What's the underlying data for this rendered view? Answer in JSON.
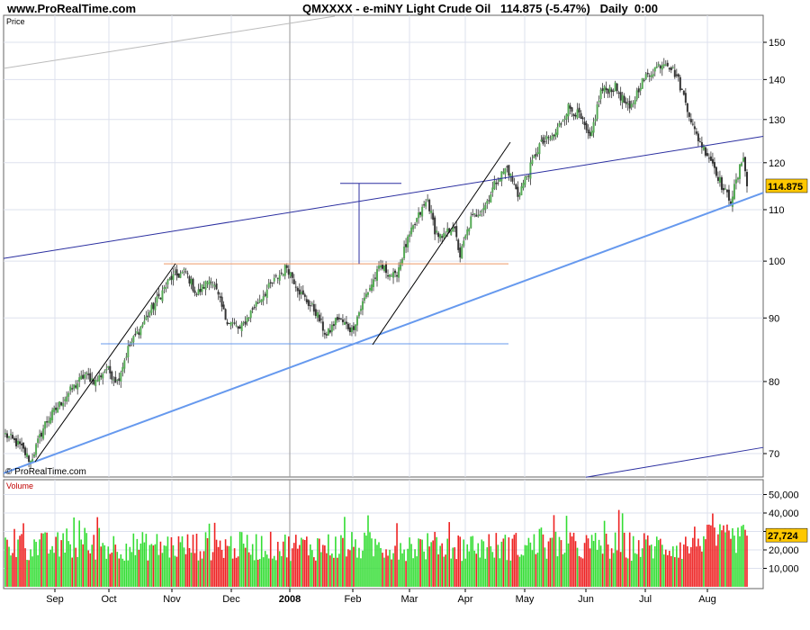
{
  "header": {
    "site": "www.ProRealTime.com",
    "title": "QMXXXX - e-miNY Light Crude Oil   114.875 (-5.47%)   Daily  0:00"
  },
  "watermark": "© ProRealTime.com",
  "colors": {
    "background": "#ffffff",
    "grid": "#dde1ee",
    "up_candle": "#55aa55",
    "down_candle": "#333333",
    "volume_up": "#33dd33",
    "volume_down": "#ee2222",
    "trend_blue": "#6699ee",
    "channel_navy": "#2b2fa0",
    "resistance_orange": "#ee9966",
    "price_badge": "#ffc800"
  },
  "chart_data": [
    {
      "type": "candlestick",
      "panel": "price",
      "label": "Price",
      "x_labels": [
        "Sep",
        "Oct",
        "Nov",
        "Dec",
        "2008",
        "Feb",
        "Mar",
        "Apr",
        "May",
        "Jun",
        "Jul",
        "Aug"
      ],
      "y_ticks": [
        70,
        80,
        90,
        100,
        110,
        120,
        130,
        140,
        150
      ],
      "ylim": [
        67,
        154
      ],
      "y_scale": "log",
      "last_price": "114.875",
      "close_anchors": [
        [
          0,
          72.5
        ],
        [
          8,
          71
        ],
        [
          14,
          69
        ],
        [
          22,
          74
        ],
        [
          34,
          78
        ],
        [
          44,
          81
        ],
        [
          50,
          80
        ],
        [
          56,
          82
        ],
        [
          62,
          80
        ],
        [
          68,
          85
        ],
        [
          74,
          88
        ],
        [
          82,
          92
        ],
        [
          92,
          97
        ],
        [
          100,
          98
        ],
        [
          106,
          94
        ],
        [
          114,
          97
        ],
        [
          122,
          90
        ],
        [
          130,
          88
        ],
        [
          138,
          92
        ],
        [
          148,
          96
        ],
        [
          156,
          99
        ],
        [
          164,
          94
        ],
        [
          172,
          91
        ],
        [
          178,
          87
        ],
        [
          184,
          90
        ],
        [
          192,
          88
        ],
        [
          200,
          94
        ],
        [
          208,
          99
        ],
        [
          216,
          97
        ],
        [
          222,
          103
        ],
        [
          228,
          108
        ],
        [
          234,
          112
        ],
        [
          238,
          106
        ],
        [
          242,
          104
        ],
        [
          248,
          107
        ],
        [
          252,
          101
        ],
        [
          258,
          108
        ],
        [
          266,
          111
        ],
        [
          272,
          116
        ],
        [
          278,
          119
        ],
        [
          284,
          113
        ],
        [
          290,
          118
        ],
        [
          296,
          124
        ],
        [
          304,
          126
        ],
        [
          312,
          133
        ],
        [
          318,
          131
        ],
        [
          324,
          125
        ],
        [
          330,
          137
        ],
        [
          338,
          138
        ],
        [
          346,
          132
        ],
        [
          352,
          139
        ],
        [
          360,
          143
        ],
        [
          366,
          145
        ],
        [
          372,
          141
        ],
        [
          378,
          133
        ],
        [
          382,
          127
        ],
        [
          386,
          124
        ],
        [
          392,
          120
        ],
        [
          398,
          114
        ],
        [
          402,
          112
        ],
        [
          406,
          117
        ],
        [
          409,
          122
        ],
        [
          411,
          114.875
        ]
      ],
      "drawings": [
        {
          "kind": "support-trendline",
          "points": [
            [
              "Aug 2007",
              67.5
            ],
            [
              "Sep 2008",
              113.5
            ]
          ]
        },
        {
          "kind": "upper-channel-line",
          "points": [
            [
              "Aug 2007",
              100.5
            ],
            [
              "Sep 2008",
              126
            ]
          ]
        },
        {
          "kind": "upper-long-line",
          "points": [
            [
              "Aug 2007",
              143
            ],
            [
              "Jan 2008",
              155
            ]
          ]
        },
        {
          "kind": "lower-channel-line",
          "points": [
            [
              "Jun 2008",
              67
            ],
            [
              "Sep 2008",
              70.8
            ]
          ]
        },
        {
          "kind": "resistance-line",
          "value": 99.5
        },
        {
          "kind": "support-line",
          "value": 85.8
        },
        {
          "kind": "projection-marker",
          "from": 99.5,
          "to": 115.5
        },
        {
          "kind": "trend-channel-1",
          "points": [
            [
              "Sep 2007",
              68
            ],
            [
              "Nov 2007",
              99.5
            ]
          ]
        },
        {
          "kind": "trend-channel-2",
          "points": [
            [
              "Feb 2008",
              86
            ],
            [
              "Apr 2008",
              125
            ]
          ]
        }
      ]
    },
    {
      "type": "bar",
      "panel": "volume",
      "label": "Volume",
      "y_ticks": [
        "10,000",
        "20,000",
        "30,000",
        "40,000",
        "50,000"
      ],
      "y_tick_values": [
        10000,
        20000,
        30000,
        40000,
        50000
      ],
      "ylim": [
        0,
        58000
      ],
      "last_value": "27,724"
    }
  ]
}
